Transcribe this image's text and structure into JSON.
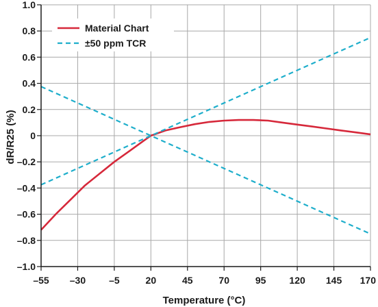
{
  "chart_data": {
    "type": "line",
    "title": "",
    "xlabel": "Temperature (°C)",
    "ylabel": "dR/R25 (%)",
    "xlim": [
      -55,
      170
    ],
    "ylim": [
      -1.0,
      1.0
    ],
    "x_ticks": [
      -55,
      -30,
      -5,
      20,
      45,
      70,
      95,
      120,
      145,
      170
    ],
    "x_tick_labels": [
      "–55",
      "–30",
      "–5",
      "20",
      "45",
      "70",
      "95",
      "120",
      "145",
      "170"
    ],
    "y_ticks": [
      1.0,
      0.8,
      0.6,
      0.4,
      0.2,
      0,
      -0.2,
      -0.4,
      -0.6,
      -0.8,
      -1.0
    ],
    "y_tick_labels": [
      "1.0",
      "0.8",
      "0.6",
      "0.4",
      "0.2",
      "0",
      "–0.2",
      "–0.4",
      "–0.6",
      "–0.8",
      "–1.0"
    ],
    "grid": true,
    "legend_position": "top-left",
    "series": [
      {
        "name": "Material Chart",
        "style": "solid",
        "color": "#d6283a",
        "x": [
          -55,
          -45,
          -35,
          -25,
          -15,
          -5,
          5,
          15,
          20,
          30,
          40,
          50,
          60,
          70,
          80,
          90,
          100,
          110,
          120,
          130,
          140,
          150,
          160,
          170
        ],
        "y": [
          -0.72,
          -0.6,
          -0.49,
          -0.38,
          -0.29,
          -0.2,
          -0.12,
          -0.04,
          0.0,
          0.04,
          0.065,
          0.088,
          0.105,
          0.115,
          0.12,
          0.12,
          0.115,
          0.1,
          0.085,
          0.07,
          0.055,
          0.04,
          0.025,
          0.01
        ]
      },
      {
        "name": "±50 ppm TCR",
        "style": "dashed",
        "color": "#1eaecb",
        "x": [
          -55,
          170
        ],
        "y": [
          -0.375,
          0.75
        ]
      },
      {
        "name": "",
        "style": "dashed",
        "color": "#1eaecb",
        "x": [
          -55,
          170
        ],
        "y": [
          0.375,
          -0.75
        ]
      }
    ]
  }
}
